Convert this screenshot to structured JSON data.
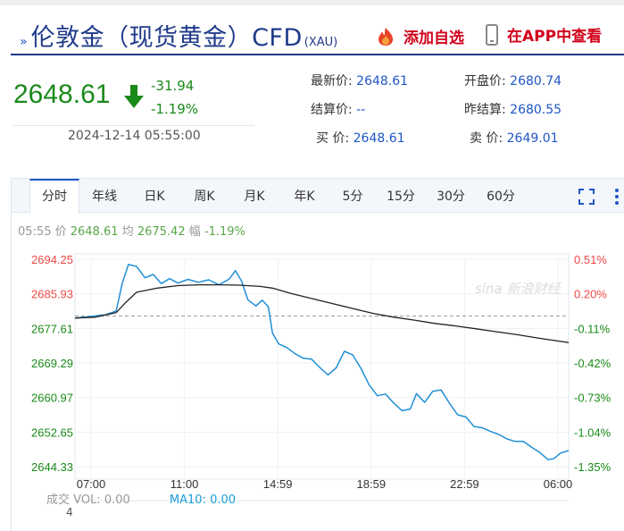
{
  "header": {
    "title": "伦敦金（现货黄金）CFD",
    "title_sub": "(XAU)",
    "add_watch_label": "添加自选",
    "app_view_label": "在APP中查看"
  },
  "quote": {
    "price": "2648.61",
    "change": "-31.94",
    "change_pct": "-1.19%",
    "datetime": "2024-12-14 05:55:00"
  },
  "stats": {
    "latest_k": "最新价:",
    "latest_v": "2648.61",
    "open_k": "开盘价:",
    "open_v": "2680.74",
    "settle_k": "结算价:",
    "settle_v": "--",
    "prev_settle_k": "昨结算:",
    "prev_settle_v": "2680.55",
    "buy_k": "买  价:",
    "buy_v": "2648.61",
    "sell_k": "卖  价:",
    "sell_v": "2649.01"
  },
  "tabs": [
    "分时",
    "年线",
    "日K",
    "周K",
    "月K",
    "年K",
    "5分",
    "15分",
    "30分",
    "60分"
  ],
  "info": {
    "time": "05:55",
    "price_k": "价",
    "price_v": "2648.61",
    "avg_k": "均",
    "avg_v": "2675.42",
    "amp_k": "幅",
    "amp_v": "-1.19%"
  },
  "volume": {
    "label_prefix": "成交",
    "label_suffix": "4",
    "vol_k": "VOL:",
    "vol_v": "0.00",
    "ma_k": "MA10:",
    "ma_v": "0.00"
  },
  "colors": {
    "up": "#f04848",
    "down": "#1a8a1a",
    "price_line": "#1f8fd6",
    "avg_line": "#222222",
    "accent": "#1f56c5"
  },
  "chart_data": {
    "type": "line",
    "x_tick_labels": [
      "07:00",
      "11:00",
      "14:59",
      "18:59",
      "22:59",
      "06:00"
    ],
    "y_tick_labels": [
      "2694.25",
      "2685.93",
      "2677.61",
      "2669.29",
      "2660.97",
      "2652.65",
      "2644.33"
    ],
    "y_pct_labels": [
      "0.51%",
      "0.20%",
      "-0.11%",
      "-0.42%",
      "-0.73%",
      "-1.04%",
      "-1.35%"
    ],
    "ylim": [
      2644.33,
      2694.25
    ],
    "prev_close": 2680.55,
    "x_hours": [
      7,
      31
    ],
    "series": [
      {
        "name": "价",
        "points": [
          [
            7.0,
            2680.1
          ],
          [
            7.5,
            2680.3
          ],
          [
            8.0,
            2680.6
          ],
          [
            8.5,
            2680.9
          ],
          [
            9.0,
            2681.8
          ],
          [
            9.3,
            2688.5
          ],
          [
            9.6,
            2693.0
          ],
          [
            10.0,
            2692.5
          ],
          [
            10.4,
            2689.8
          ],
          [
            10.8,
            2690.6
          ],
          [
            11.2,
            2688.4
          ],
          [
            11.6,
            2689.6
          ],
          [
            12.0,
            2688.5
          ],
          [
            12.5,
            2689.4
          ],
          [
            13.0,
            2688.7
          ],
          [
            13.5,
            2689.3
          ],
          [
            14.0,
            2688.1
          ],
          [
            14.5,
            2689.5
          ],
          [
            14.8,
            2691.5
          ],
          [
            15.1,
            2689.0
          ],
          [
            15.4,
            2684.5
          ],
          [
            15.8,
            2683.0
          ],
          [
            16.1,
            2684.4
          ],
          [
            16.4,
            2682.8
          ],
          [
            16.6,
            2676.5
          ],
          [
            16.9,
            2673.9
          ],
          [
            17.3,
            2673.0
          ],
          [
            17.7,
            2671.5
          ],
          [
            18.1,
            2670.4
          ],
          [
            18.5,
            2670.2
          ],
          [
            18.9,
            2668.2
          ],
          [
            19.3,
            2666.4
          ],
          [
            19.7,
            2668.1
          ],
          [
            20.1,
            2672.1
          ],
          [
            20.5,
            2671.2
          ],
          [
            20.9,
            2668.0
          ],
          [
            21.3,
            2664.0
          ],
          [
            21.7,
            2661.4
          ],
          [
            22.1,
            2661.8
          ],
          [
            22.5,
            2659.6
          ],
          [
            22.9,
            2657.8
          ],
          [
            23.3,
            2658.2
          ],
          [
            23.6,
            2661.9
          ],
          [
            24.0,
            2659.8
          ],
          [
            24.4,
            2662.5
          ],
          [
            24.8,
            2662.8
          ],
          [
            25.2,
            2659.6
          ],
          [
            25.6,
            2656.8
          ],
          [
            26.0,
            2656.3
          ],
          [
            26.4,
            2654.0
          ],
          [
            26.8,
            2653.7
          ],
          [
            27.2,
            2652.8
          ],
          [
            27.6,
            2652.1
          ],
          [
            28.0,
            2651.0
          ],
          [
            28.4,
            2650.4
          ],
          [
            28.8,
            2650.4
          ],
          [
            29.2,
            2649.0
          ],
          [
            29.6,
            2647.7
          ],
          [
            30.0,
            2646.0
          ],
          [
            30.3,
            2646.3
          ],
          [
            30.6,
            2647.6
          ],
          [
            31.0,
            2648.2
          ]
        ]
      },
      {
        "name": "均",
        "points": [
          [
            7.0,
            2680.1
          ],
          [
            8.0,
            2680.3
          ],
          [
            9.0,
            2681.4
          ],
          [
            9.5,
            2684.0
          ],
          [
            10.0,
            2686.3
          ],
          [
            11.0,
            2687.3
          ],
          [
            12.0,
            2687.9
          ],
          [
            13.0,
            2688.1
          ],
          [
            14.0,
            2688.1
          ],
          [
            15.0,
            2688.0
          ],
          [
            16.0,
            2687.7
          ],
          [
            16.6,
            2687.3
          ],
          [
            17.5,
            2686.0
          ],
          [
            18.5,
            2684.8
          ],
          [
            19.5,
            2683.6
          ],
          [
            20.5,
            2682.4
          ],
          [
            21.5,
            2681.2
          ],
          [
            22.5,
            2680.3
          ],
          [
            23.5,
            2679.6
          ],
          [
            24.5,
            2678.8
          ],
          [
            25.5,
            2678.2
          ],
          [
            26.5,
            2677.5
          ],
          [
            27.5,
            2676.8
          ],
          [
            28.5,
            2676.1
          ],
          [
            29.5,
            2675.3
          ],
          [
            31.0,
            2674.2
          ]
        ]
      }
    ],
    "grid": true
  }
}
